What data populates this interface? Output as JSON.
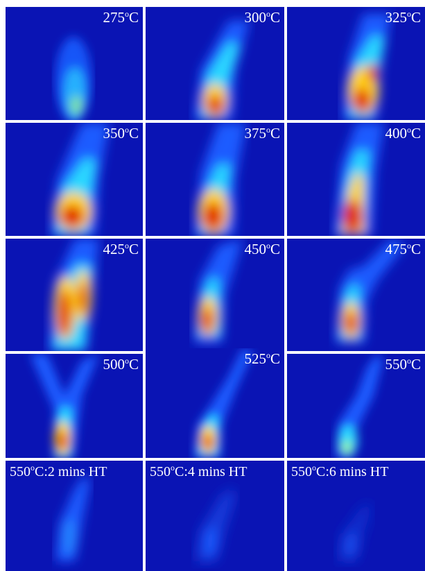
{
  "colors": {
    "background": "#0a14b4",
    "low": "#1a5cff",
    "mid": "#2cd8ff",
    "high": "#ffd21a",
    "peak": "#e02000"
  },
  "panels": [
    {
      "deg": "o",
      "text": "275",
      "unit": "C",
      "suffix": ""
    },
    {
      "deg": "o",
      "text": "300",
      "unit": "C",
      "suffix": ""
    },
    {
      "deg": "o",
      "text": "325",
      "unit": "C",
      "suffix": ""
    },
    {
      "deg": "o",
      "text": "350",
      "unit": "C",
      "suffix": ""
    },
    {
      "deg": "o",
      "text": "375",
      "unit": "C",
      "suffix": ""
    },
    {
      "deg": "o",
      "text": "400",
      "unit": "C",
      "suffix": ""
    },
    {
      "deg": "o",
      "text": "425",
      "unit": "C",
      "suffix": ""
    },
    {
      "deg": "o",
      "text": "450",
      "unit": "C",
      "suffix": ""
    },
    {
      "deg": "o",
      "text": "475",
      "unit": "C",
      "suffix": ""
    },
    {
      "deg": "o",
      "text": "500",
      "unit": "C",
      "suffix": ""
    },
    {
      "deg": "o",
      "text": "525",
      "unit": "C",
      "suffix": ""
    },
    {
      "deg": "o",
      "text": "550",
      "unit": "C",
      "suffix": ""
    },
    {
      "deg": "o",
      "text": "550",
      "unit": "C",
      "suffix": ":2 mins HT"
    },
    {
      "deg": "o",
      "text": "550",
      "unit": "C",
      "suffix": ":4 mins HT"
    },
    {
      "deg": "o",
      "text": "550",
      "unit": "C",
      "suffix": ":6 mins HT"
    }
  ]
}
